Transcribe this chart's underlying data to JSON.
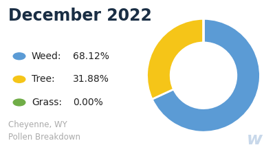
{
  "title": "December 2022",
  "subtitle": "Cheyenne, WY\nPollen Breakdown",
  "categories": [
    "Weed",
    "Tree",
    "Grass"
  ],
  "values": [
    68.12,
    31.88,
    0.0
  ],
  "colors": [
    "#5B9BD5",
    "#F5C518",
    "#70AD47"
  ],
  "background_color": "#ffffff",
  "title_color": "#1a2e44",
  "title_fontsize": 17,
  "legend_fontsize": 10,
  "subtitle_color": "#aaaaaa",
  "subtitle_fontsize": 8.5,
  "legend_dot_size": 60,
  "watermark_color": "#c8d8ea",
  "watermark_fontsize": 18
}
